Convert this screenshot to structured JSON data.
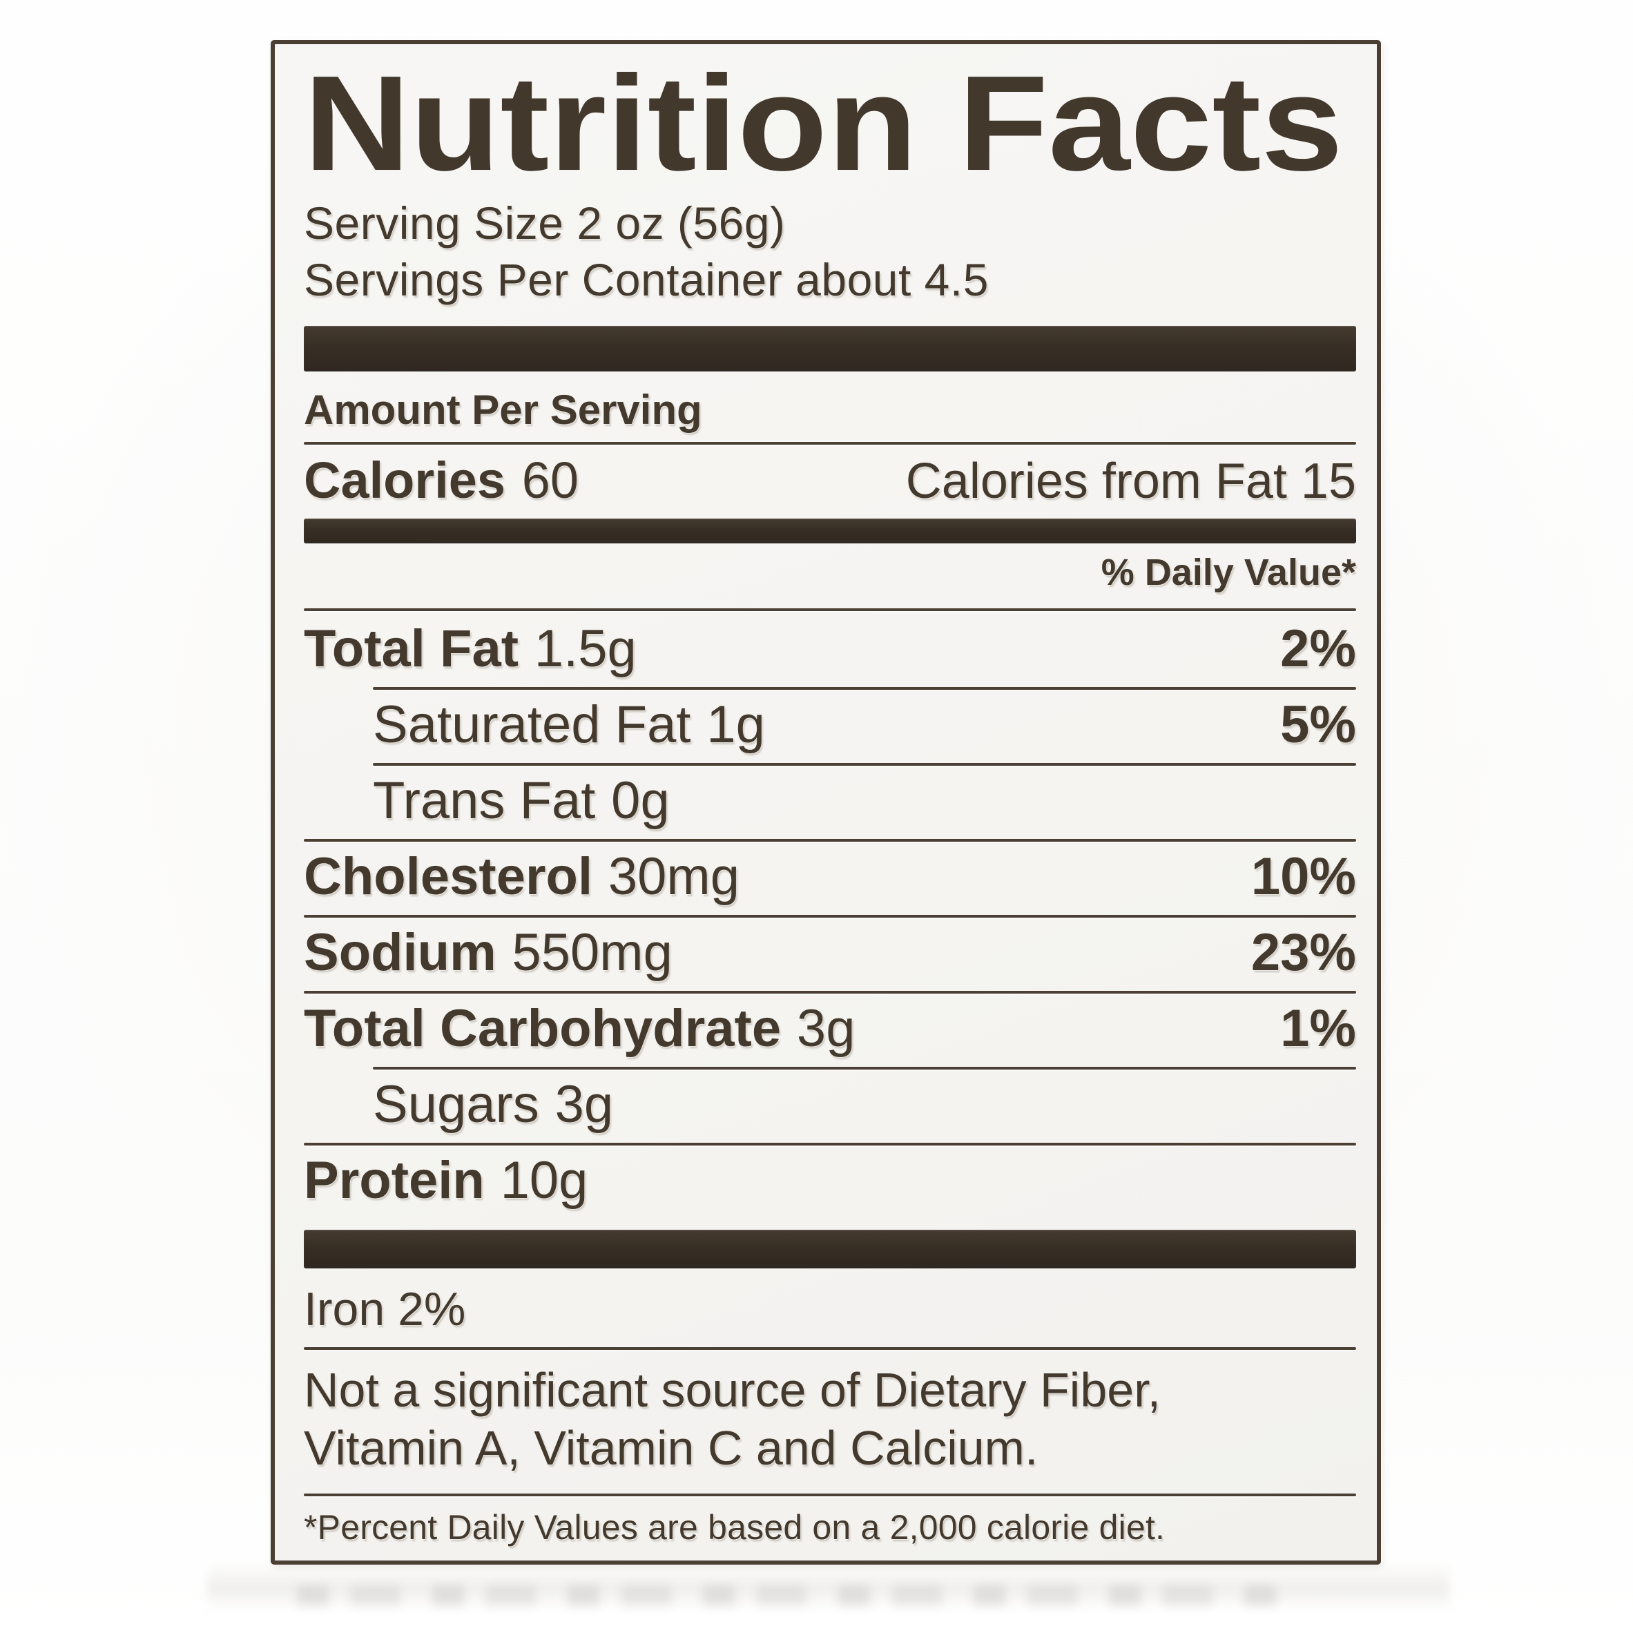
{
  "label": {
    "title": "Nutrition Facts",
    "serving": {
      "size": "Serving Size 2 oz (56g)",
      "per_container": "Servings Per Container about 4.5"
    },
    "amount_per_serving": "Amount Per Serving",
    "calories": {
      "label": "Calories",
      "value": "60",
      "from_fat": "Calories from Fat 15"
    },
    "daily_value_header": "% Daily Value*",
    "rows": [
      {
        "name": "Total Fat",
        "amount": "1.5g",
        "dv": "2%"
      },
      {
        "name": "Saturated Fat",
        "amount": "1g",
        "dv": "5%"
      },
      {
        "name": "Trans Fat",
        "amount": "0g",
        "dv": ""
      },
      {
        "name": "Cholesterol",
        "amount": "30mg",
        "dv": "10%"
      },
      {
        "name": "Sodium",
        "amount": "550mg",
        "dv": "23%"
      },
      {
        "name": "Total Carbohydrate",
        "amount": "3g",
        "dv": "1%"
      },
      {
        "name": "Sugars",
        "amount": "3g",
        "dv": ""
      },
      {
        "name": "Protein",
        "amount": "10g",
        "dv": ""
      }
    ],
    "iron": "Iron 2%",
    "not_significant": {
      "line1": "Not a significant source of Dietary Fiber,",
      "line2": "Vitamin A, Vitamin C and Calcium."
    },
    "footnote": "*Percent Daily Values are based on a 2,000 calorie diet."
  },
  "colors": {
    "ink": "#44392d",
    "bar": "#372e25",
    "rule": "#4b4033",
    "border": "#4a3f32",
    "label_background": "#f5f4f1",
    "page_background": "#fdfdfc"
  }
}
